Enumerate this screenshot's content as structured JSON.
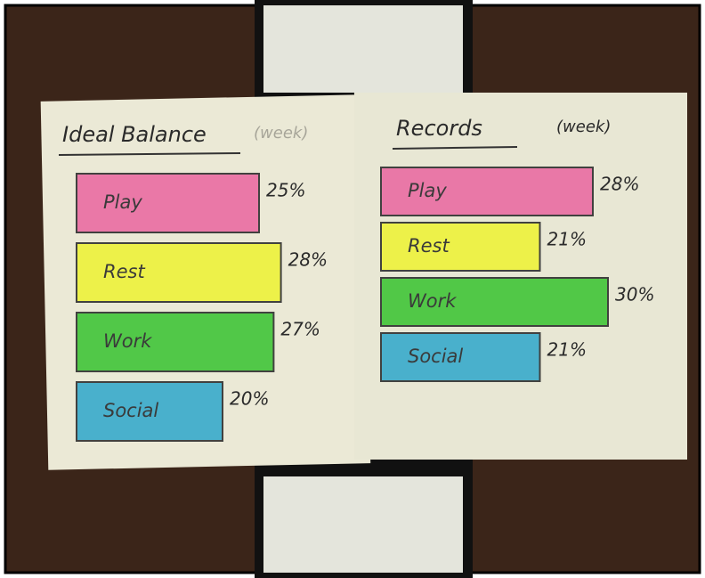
{
  "chart_data": [
    {
      "type": "bar",
      "title": "Ideal Balance",
      "subtitle": "(week)",
      "categories": [
        "Play",
        "Rest",
        "Work",
        "Social"
      ],
      "values": [
        25,
        28,
        27,
        20
      ],
      "value_labels": [
        "25%",
        "28%",
        "27%",
        "20%"
      ],
      "colors": [
        "#ea6fa4",
        "#eef23e",
        "#45c63c",
        "#3caccc"
      ]
    },
    {
      "type": "bar",
      "title": "Records",
      "subtitle": "(week)",
      "categories": [
        "Play",
        "Rest",
        "Work",
        "Social"
      ],
      "values": [
        28,
        21,
        30,
        21
      ],
      "value_labels": [
        "28%",
        "21%",
        "30%",
        "21%"
      ],
      "colors": [
        "#ea6fa4",
        "#eef23e",
        "#45c63c",
        "#3caccc"
      ]
    }
  ]
}
